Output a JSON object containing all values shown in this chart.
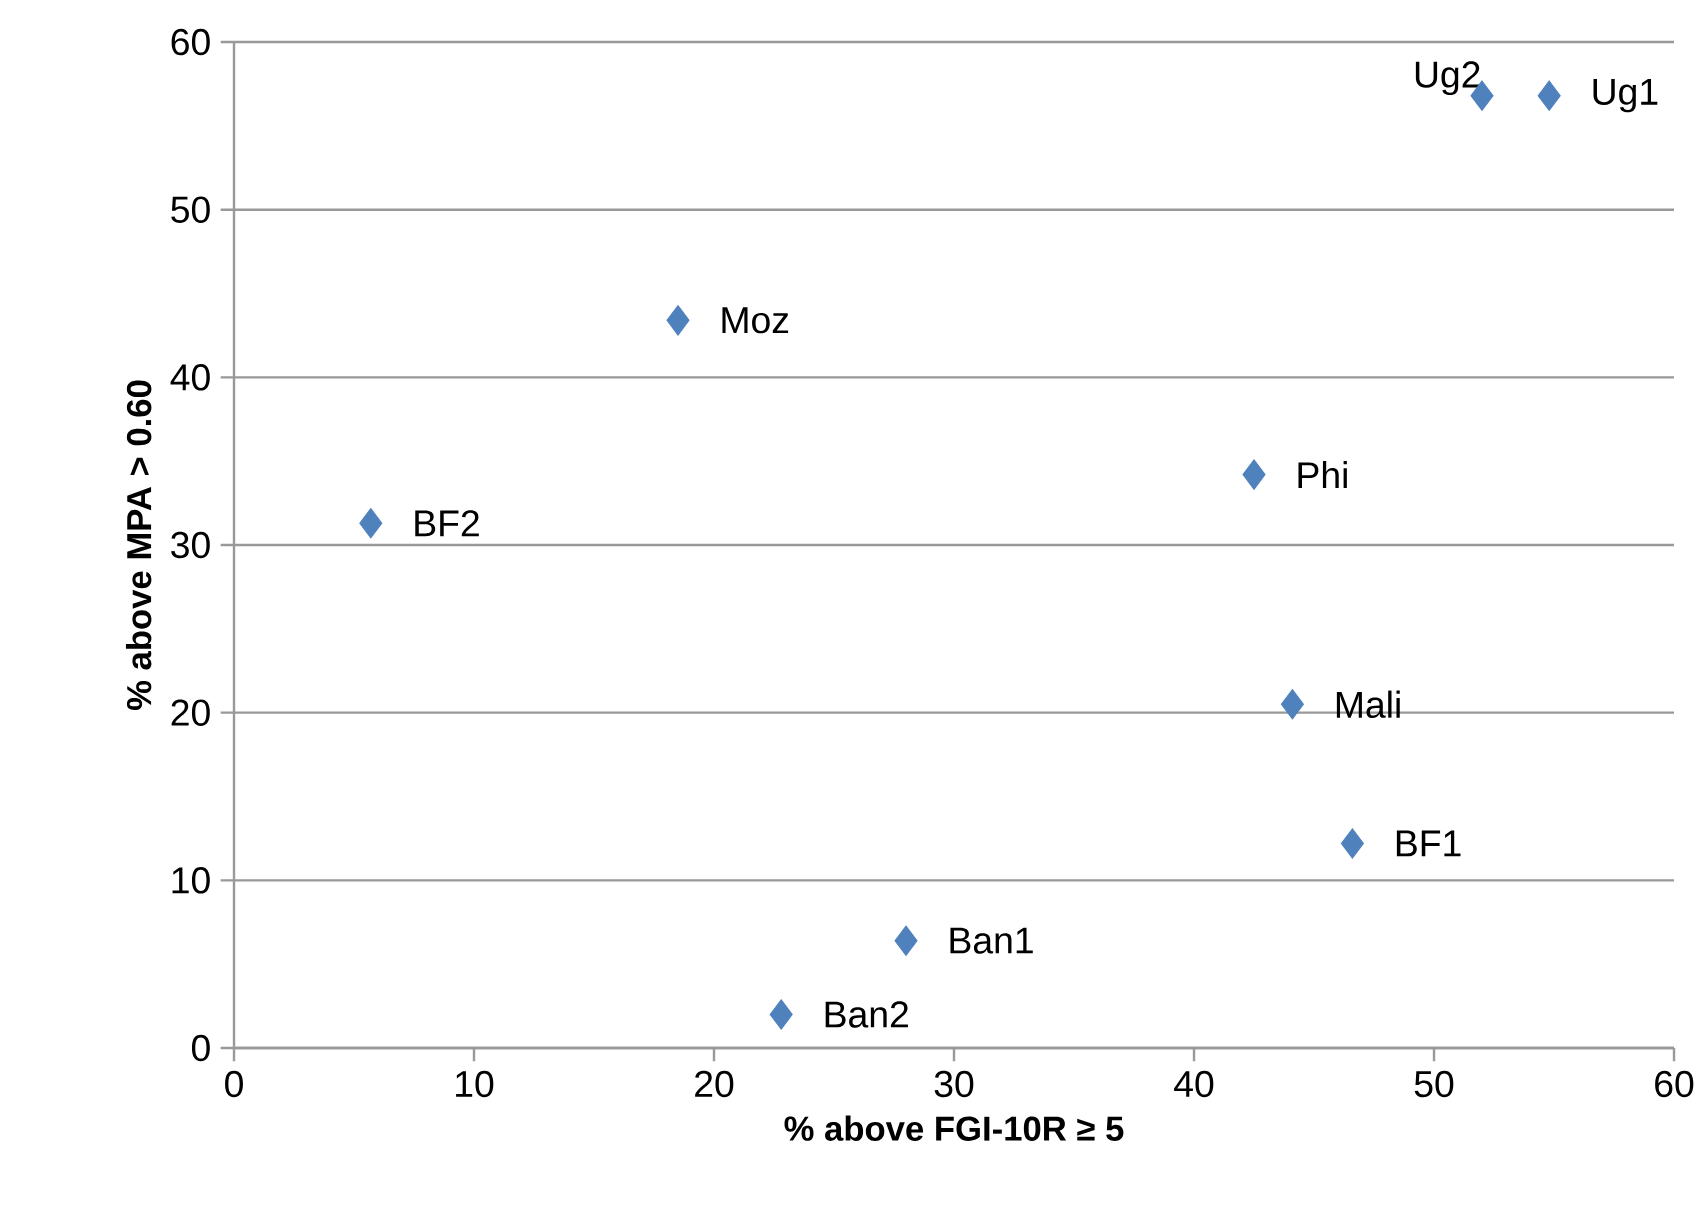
{
  "chart_data": {
    "type": "scatter",
    "xlabel": "% above FGI-10R ≥ 5",
    "ylabel": "% above MPA > 0.60",
    "x": [
      54.8,
      52.0,
      18.5,
      42.5,
      5.7,
      44.1,
      46.6,
      28.0,
      22.8
    ],
    "values": [
      56.8,
      56.8,
      43.4,
      34.2,
      31.3,
      20.5,
      12.2,
      6.4,
      2.0
    ],
    "color": "#4f81bd",
    "marker": "diamond",
    "grid": "y",
    "xlim": [
      0,
      60
    ],
    "ylim": [
      0,
      60
    ],
    "xticks": [
      0,
      10,
      20,
      30,
      40,
      50,
      60
    ],
    "yticks": [
      0,
      10,
      20,
      30,
      40,
      50,
      60
    ],
    "annotations": [
      {
        "text": "Ug1",
        "x": 54.8,
        "y": 56.8
      },
      {
        "text": "Ug2",
        "x": 52.0,
        "y": 56.8
      },
      {
        "text": "Moz",
        "x": 18.5,
        "y": 43.4
      },
      {
        "text": "Phi",
        "x": 42.5,
        "y": 34.2
      },
      {
        "text": "BF2",
        "x": 5.7,
        "y": 31.3
      },
      {
        "text": "Mali",
        "x": 44.1,
        "y": 20.5
      },
      {
        "text": "BF1",
        "x": 46.6,
        "y": 12.2
      },
      {
        "text": "Ban1",
        "x": 28.0,
        "y": 6.4
      },
      {
        "text": "Ban2",
        "x": 22.8,
        "y": 2.0
      }
    ]
  }
}
